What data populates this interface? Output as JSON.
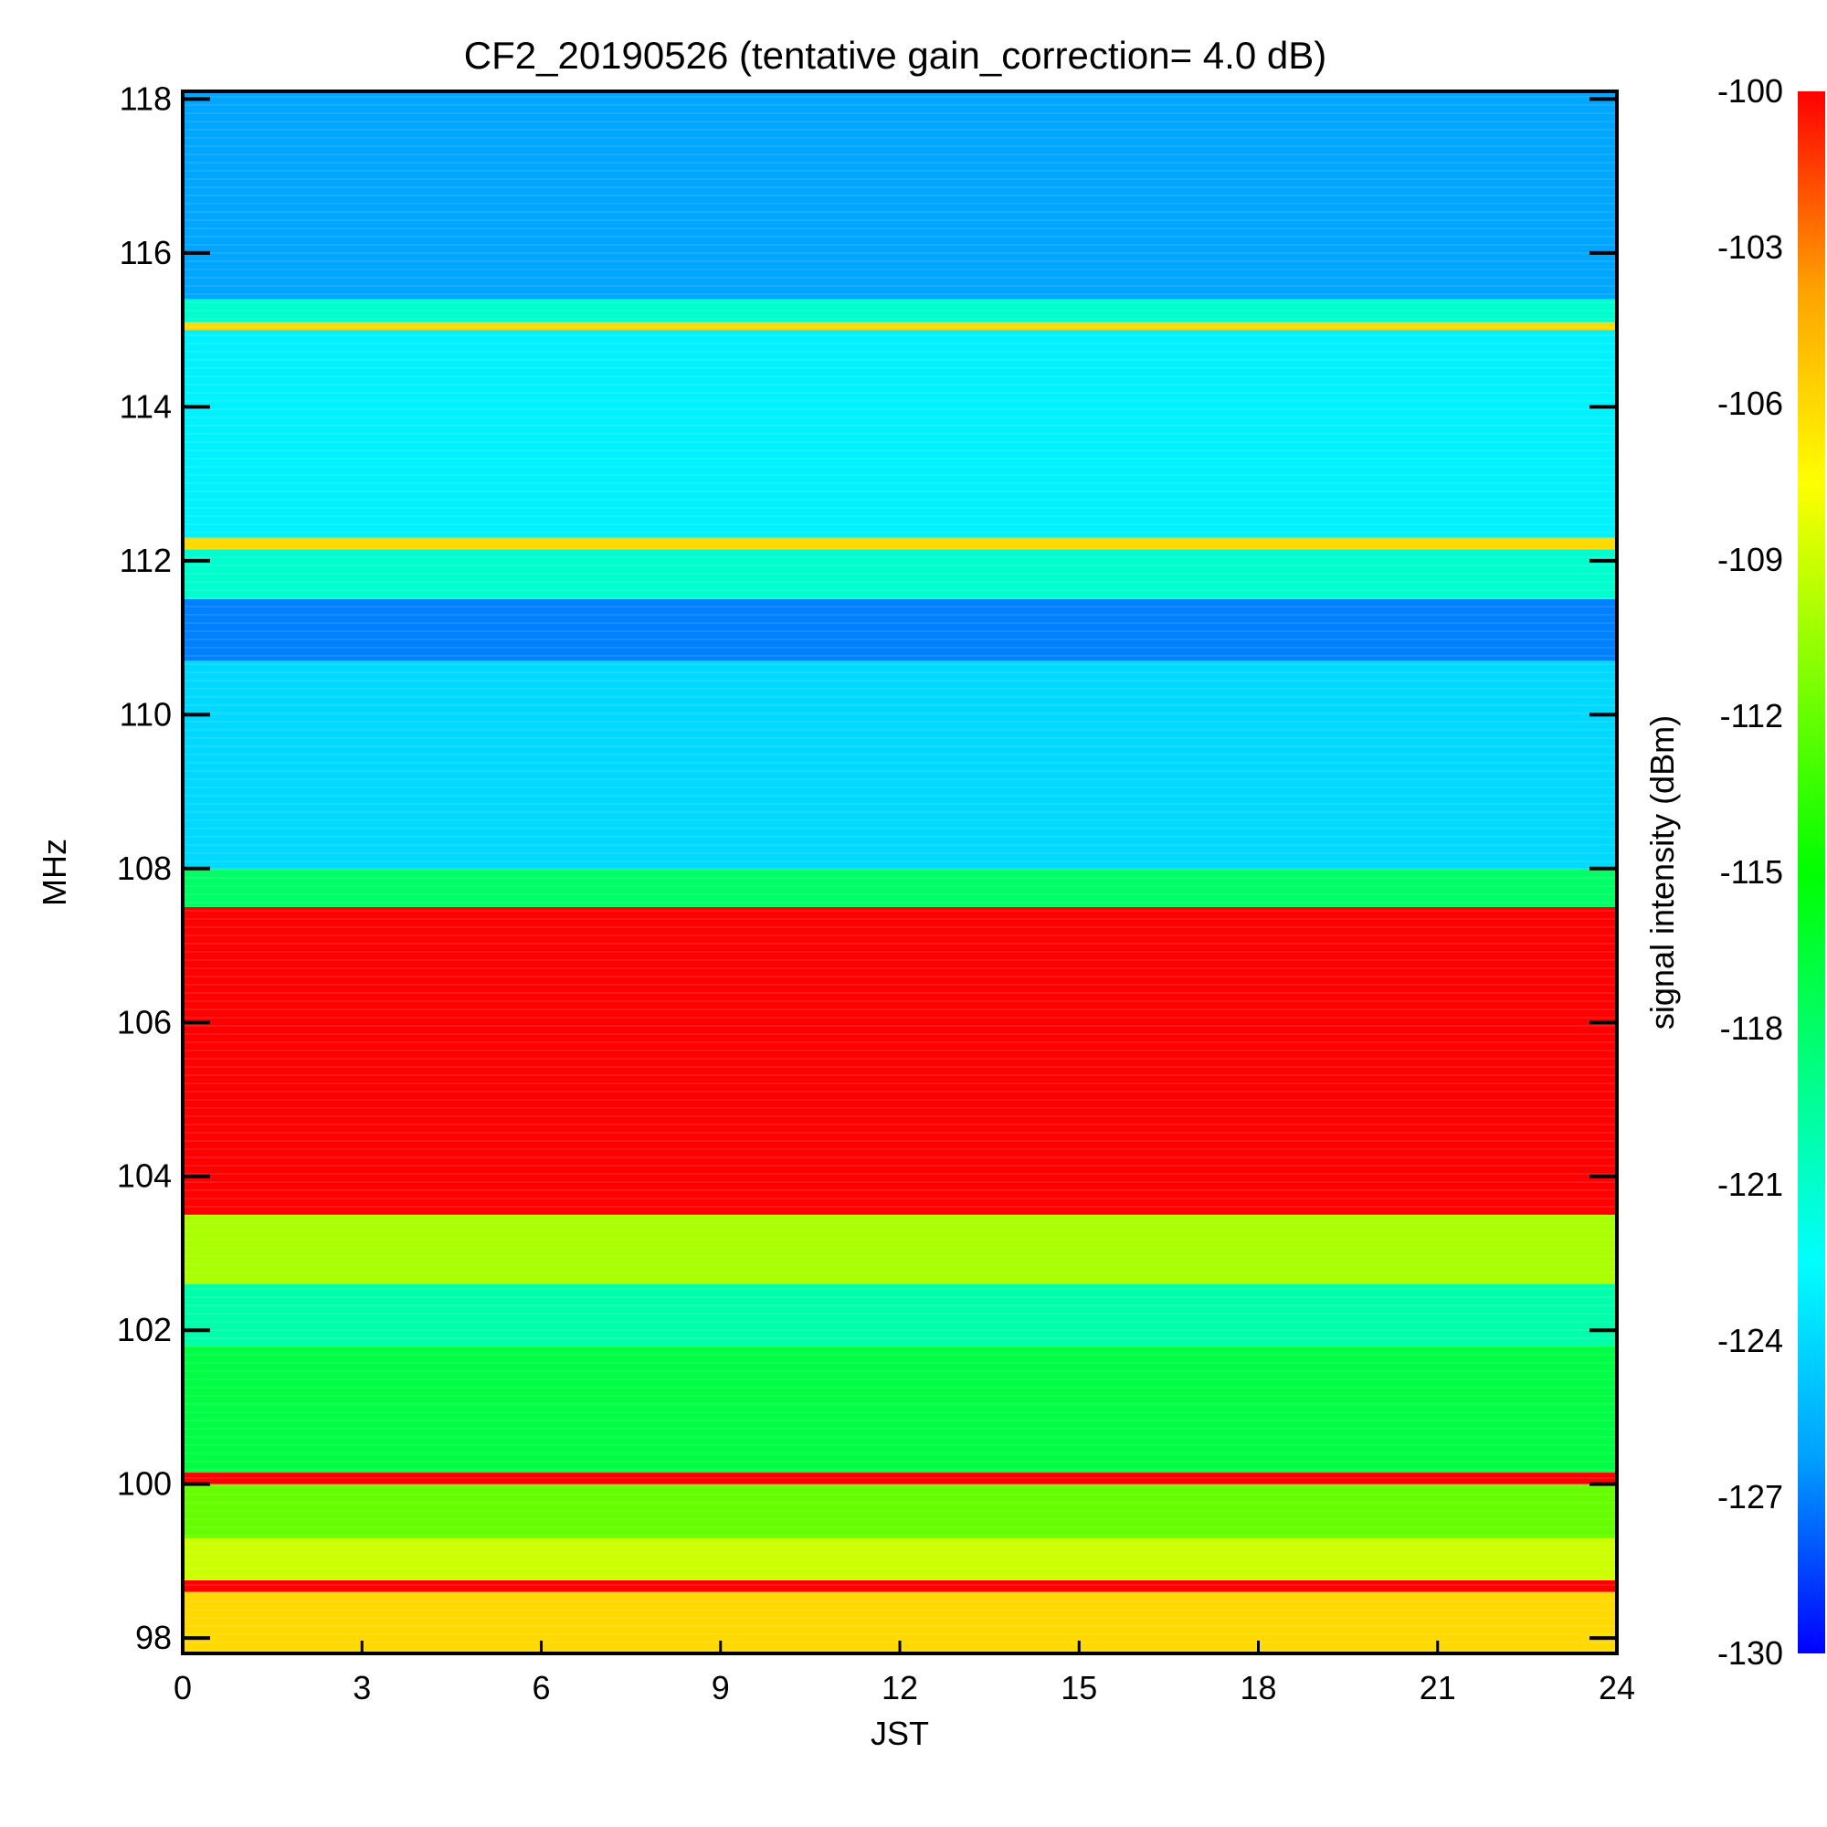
{
  "chart_data": {
    "type": "heatmap",
    "title": "CF2_20190526 (tentative gain_correction=  4.0 dB)",
    "xlabel": "JST",
    "ylabel": "MHz",
    "colorbar_label": "signal intensity (dBm)",
    "xlim": [
      0,
      24
    ],
    "ylim": [
      97.8,
      118.1
    ],
    "x_ticks": [
      0,
      3,
      6,
      9,
      12,
      15,
      18,
      21,
      24
    ],
    "y_ticks": [
      98,
      100,
      102,
      104,
      106,
      108,
      110,
      112,
      114,
      116,
      118
    ],
    "colorbar_range": [
      -130,
      -100
    ],
    "colorbar_ticks": [
      -100,
      -103,
      -106,
      -109,
      -112,
      -115,
      -118,
      -121,
      -124,
      -127,
      -130
    ],
    "colormap": [
      "#0000ff",
      "#00a0ff",
      "#00ffff",
      "#00ff80",
      "#00ff00",
      "#80ff00",
      "#ffff00",
      "#ffa000",
      "#ff0000"
    ],
    "bands": [
      {
        "from": 97.8,
        "to": 98.6,
        "dbm": -106
      },
      {
        "from": 98.6,
        "to": 98.75,
        "dbm": -100
      },
      {
        "from": 98.75,
        "to": 99.3,
        "dbm": -109
      },
      {
        "from": 99.3,
        "to": 100.0,
        "dbm": -112
      },
      {
        "from": 100.0,
        "to": 100.15,
        "dbm": -100
      },
      {
        "from": 100.15,
        "to": 101.8,
        "dbm": -117
      },
      {
        "from": 101.8,
        "to": 102.6,
        "dbm": -120
      },
      {
        "from": 102.6,
        "to": 103.5,
        "dbm": -110
      },
      {
        "from": 103.5,
        "to": 107.5,
        "dbm": -100
      },
      {
        "from": 107.5,
        "to": 108.0,
        "dbm": -118
      },
      {
        "from": 108.0,
        "to": 110.7,
        "dbm": -124
      },
      {
        "from": 110.7,
        "to": 111.5,
        "dbm": -127
      },
      {
        "from": 111.5,
        "to": 112.15,
        "dbm": -121
      },
      {
        "from": 112.15,
        "to": 112.3,
        "dbm": -106
      },
      {
        "from": 112.3,
        "to": 115.0,
        "dbm": -123
      },
      {
        "from": 115.0,
        "to": 115.1,
        "dbm": -106
      },
      {
        "from": 115.1,
        "to": 115.4,
        "dbm": -121
      },
      {
        "from": 115.4,
        "to": 118.1,
        "dbm": -126
      }
    ]
  }
}
